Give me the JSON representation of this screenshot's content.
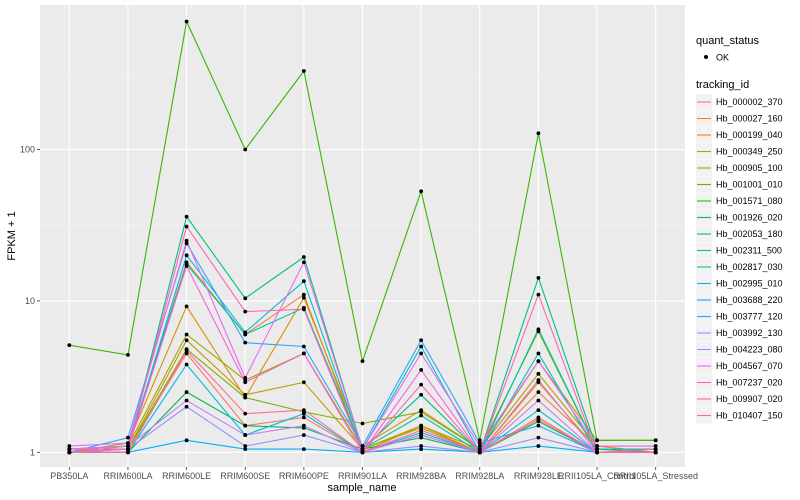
{
  "chart_data": {
    "type": "line",
    "xlabel": "sample_name",
    "ylabel": "FPKM + 1",
    "yscale": "log10",
    "ylim": [
      0.8,
      900
    ],
    "yticks": [
      1,
      10,
      100
    ],
    "ytick_labels": [
      "1",
      "10",
      "100"
    ],
    "categories": [
      "PB350LA",
      "RRIM600LA",
      "RRIM600LE",
      "RRIM600SE",
      "RRIM600PE",
      "RRIM901LA",
      "RRIM928BA",
      "RRIM928LA",
      "RRIM928LE",
      "RRII105LA_Control",
      "RRII105LA_Stressed"
    ],
    "category_labels": [
      "PB350LA",
      "RRIM600LA",
      "RRIM600LE",
      "RRIM600SE",
      "RRIM600PE",
      "RRIM901LA",
      "RRIM928BA",
      "RRIM928LA",
      "RRIM928LE",
      "RRII105LA_Control",
      "RRII105LA_Stressed"
    ],
    "grid": true,
    "legend_position": "right",
    "legends": [
      {
        "title": "quant_status",
        "entries": [
          "OK"
        ]
      },
      {
        "title": "tracking_id",
        "entries": [
          "Hb_000002_370",
          "Hb_000027_160",
          "Hb_000199_040",
          "Hb_000349_250",
          "Hb_000905_100",
          "Hb_001001_010",
          "Hb_001571_080",
          "Hb_001926_020",
          "Hb_002053_180",
          "Hb_002311_500",
          "Hb_002817_030",
          "Hb_002995_010",
          "Hb_003688_220",
          "Hb_003777_120",
          "Hb_003992_130",
          "Hb_004223_080",
          "Hb_004567_070",
          "Hb_007237_020",
          "Hb_009907_020",
          "Hb_010407_150"
        ]
      }
    ],
    "series": [
      {
        "name": "Hb_000002_370",
        "color": "#F8766D",
        "values": [
          1.0,
          1.05,
          4.5,
          1.5,
          1.7,
          1.0,
          1.3,
          1.0,
          1.7,
          1.0,
          1.0
        ]
      },
      {
        "name": "Hb_000027_160",
        "color": "#EA8331",
        "values": [
          1.0,
          1.1,
          18.0,
          6.0,
          11.0,
          1.0,
          1.5,
          1.0,
          2.5,
          1.1,
          1.0
        ]
      },
      {
        "name": "Hb_000199_040",
        "color": "#D89000",
        "values": [
          1.0,
          1.15,
          9.2,
          2.3,
          10.5,
          1.1,
          1.9,
          1.05,
          4.0,
          1.2,
          1.2
        ]
      },
      {
        "name": "Hb_000349_250",
        "color": "#C09B00",
        "values": [
          1.0,
          1.05,
          5.5,
          2.4,
          2.9,
          1.05,
          1.45,
          1.0,
          2.9,
          1.05,
          1.05
        ]
      },
      {
        "name": "Hb_000905_100",
        "color": "#A3A500",
        "values": [
          1.05,
          1.1,
          6.0,
          3.0,
          4.5,
          1.05,
          1.5,
          1.05,
          3.3,
          1.1,
          1.1
        ]
      },
      {
        "name": "Hb_001001_010",
        "color": "#7CAE00",
        "values": [
          1.05,
          1.05,
          4.8,
          2.3,
          1.85,
          1.55,
          1.85,
          1.05,
          6.3,
          1.05,
          1.0
        ]
      },
      {
        "name": "Hb_001571_080",
        "color": "#39B600",
        "values": [
          5.1,
          4.4,
          700,
          100,
          330,
          4.0,
          53,
          1.2,
          128,
          1.2,
          1.2
        ]
      },
      {
        "name": "Hb_001926_020",
        "color": "#00BB4E",
        "values": [
          1.0,
          1.0,
          2.5,
          1.5,
          1.45,
          1.05,
          1.25,
          1.0,
          1.6,
          1.0,
          1.0
        ]
      },
      {
        "name": "Hb_002053_180",
        "color": "#00BF7D",
        "values": [
          1.0,
          1.05,
          36.0,
          10.4,
          19.5,
          1.05,
          2.4,
          1.0,
          14.2,
          1.05,
          1.0
        ]
      },
      {
        "name": "Hb_002311_500",
        "color": "#00C1A3",
        "values": [
          1.05,
          1.1,
          17.5,
          6.0,
          9.0,
          1.05,
          1.75,
          1.0,
          6.5,
          1.05,
          1.05
        ]
      },
      {
        "name": "Hb_002817_030",
        "color": "#00BFC4",
        "values": [
          1.0,
          1.05,
          20.0,
          6.2,
          13.5,
          1.05,
          5.0,
          1.0,
          4.5,
          1.0,
          1.0
        ]
      },
      {
        "name": "Hb_002995_010",
        "color": "#00BAE0",
        "values": [
          1.0,
          1.0,
          3.8,
          1.3,
          1.8,
          1.0,
          1.35,
          1.0,
          1.9,
          1.0,
          1.0
        ]
      },
      {
        "name": "Hb_003688_220",
        "color": "#00B0F6",
        "values": [
          1.0,
          1.0,
          1.2,
          1.05,
          1.05,
          1.0,
          1.05,
          1.0,
          1.1,
          1.0,
          1.0
        ]
      },
      {
        "name": "Hb_003777_120",
        "color": "#35A2FF",
        "values": [
          1.0,
          1.25,
          24.0,
          5.3,
          5.0,
          1.1,
          5.5,
          1.15,
          1.5,
          1.0,
          1.0
        ]
      },
      {
        "name": "Hb_003992_130",
        "color": "#9590FF",
        "values": [
          1.0,
          1.05,
          2.0,
          1.1,
          1.3,
          1.0,
          1.1,
          1.0,
          1.25,
          1.0,
          1.0
        ]
      },
      {
        "name": "Hb_004223_080",
        "color": "#C77CFF",
        "values": [
          1.05,
          1.1,
          2.2,
          1.3,
          1.5,
          1.0,
          1.3,
          1.0,
          2.2,
          1.0,
          1.0
        ]
      },
      {
        "name": "Hb_004567_070",
        "color": "#E76BF3",
        "values": [
          1.1,
          1.15,
          25.0,
          3.1,
          18.0,
          1.05,
          4.5,
          1.1,
          4.0,
          1.1,
          1.1
        ]
      },
      {
        "name": "Hb_007237_020",
        "color": "#FA62DB",
        "values": [
          1.0,
          1.05,
          17.0,
          2.9,
          4.5,
          1.0,
          3.5,
          1.0,
          3.0,
          1.0,
          1.0
        ]
      },
      {
        "name": "Hb_009907_020",
        "color": "#FF62BC",
        "values": [
          1.05,
          1.05,
          31.0,
          8.5,
          8.8,
          1.0,
          2.8,
          1.0,
          11.0,
          1.0,
          1.05
        ]
      },
      {
        "name": "Hb_010407_150",
        "color": "#FF6C91",
        "values": [
          1.0,
          1.0,
          4.7,
          1.8,
          1.9,
          1.0,
          1.4,
          1.0,
          1.65,
          1.0,
          1.0
        ]
      }
    ]
  }
}
